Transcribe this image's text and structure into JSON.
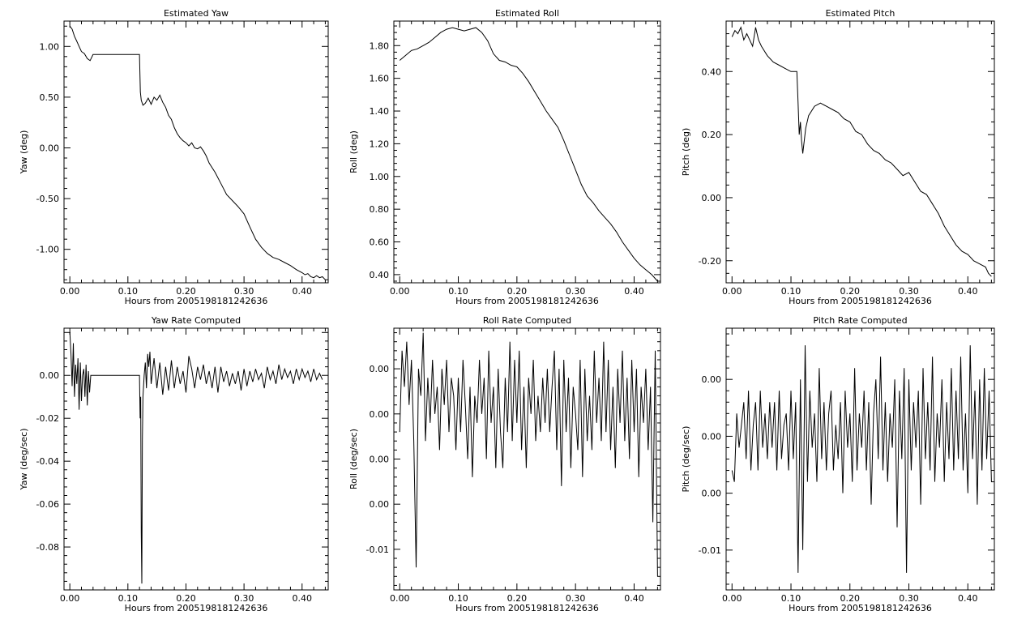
{
  "x_axis_label": "Hours from 2005198181242636",
  "chart_data": [
    {
      "type": "line",
      "title": "Estimated Yaw",
      "xlabel": "Hours from 2005198181242636",
      "ylabel": "Yaw (deg)",
      "xlim": [
        -0.01,
        0.445
      ],
      "ylim": [
        -1.33,
        1.25
      ],
      "xticks": [
        0.0,
        0.1,
        0.2,
        0.3,
        0.4
      ],
      "xticklabels": [
        "0.00",
        "0.10",
        "0.20",
        "0.30",
        "0.40"
      ],
      "yticks": [
        -1.0,
        -0.5,
        0.0,
        0.5,
        1.0
      ],
      "yticklabels": [
        "-1.00",
        "-0.50",
        "0.00",
        "0.50",
        "1.00"
      ],
      "x": [
        0.0,
        0.004,
        0.008,
        0.012,
        0.016,
        0.02,
        0.025,
        0.03,
        0.035,
        0.04,
        0.05,
        0.06,
        0.08,
        0.1,
        0.12,
        0.1215,
        0.123,
        0.126,
        0.13,
        0.135,
        0.14,
        0.145,
        0.15,
        0.155,
        0.16,
        0.165,
        0.17,
        0.175,
        0.18,
        0.185,
        0.19,
        0.195,
        0.2,
        0.205,
        0.21,
        0.215,
        0.22,
        0.225,
        0.23,
        0.235,
        0.24,
        0.25,
        0.26,
        0.27,
        0.28,
        0.29,
        0.3,
        0.31,
        0.32,
        0.33,
        0.34,
        0.35,
        0.36,
        0.37,
        0.38,
        0.39,
        0.4,
        0.405,
        0.41,
        0.415,
        0.42,
        0.425,
        0.43,
        0.435,
        0.44
      ],
      "y": [
        1.2,
        1.17,
        1.1,
        1.05,
        1.0,
        0.95,
        0.93,
        0.88,
        0.86,
        0.92,
        0.92,
        0.92,
        0.92,
        0.92,
        0.92,
        0.55,
        0.47,
        0.42,
        0.44,
        0.49,
        0.43,
        0.5,
        0.47,
        0.52,
        0.45,
        0.4,
        0.32,
        0.28,
        0.2,
        0.14,
        0.1,
        0.07,
        0.05,
        0.02,
        0.05,
        0.0,
        -0.01,
        0.01,
        -0.03,
        -0.08,
        -0.15,
        -0.24,
        -0.35,
        -0.46,
        -0.52,
        -0.58,
        -0.65,
        -0.78,
        -0.9,
        -0.98,
        -1.04,
        -1.08,
        -1.1,
        -1.13,
        -1.16,
        -1.2,
        -1.23,
        -1.25,
        -1.24,
        -1.27,
        -1.28,
        -1.26,
        -1.28,
        -1.27,
        -1.3
      ]
    },
    {
      "type": "line",
      "title": "Estimated Roll",
      "xlabel": "Hours from 2005198181242636",
      "ylabel": "Roll (deg)",
      "xlim": [
        -0.01,
        0.445
      ],
      "ylim": [
        0.35,
        1.95
      ],
      "xticks": [
        0.0,
        0.1,
        0.2,
        0.3,
        0.4
      ],
      "xticklabels": [
        "0.00",
        "0.10",
        "0.20",
        "0.30",
        "0.40"
      ],
      "yticks": [
        0.4,
        0.6,
        0.8,
        1.0,
        1.2,
        1.4,
        1.6,
        1.8
      ],
      "yticklabels": [
        "0.40",
        "0.60",
        "0.80",
        "1.00",
        "1.20",
        "1.40",
        "1.60",
        "1.80"
      ],
      "x": [
        0.0,
        0.01,
        0.02,
        0.03,
        0.04,
        0.05,
        0.06,
        0.07,
        0.08,
        0.09,
        0.1,
        0.11,
        0.12,
        0.13,
        0.14,
        0.15,
        0.16,
        0.17,
        0.18,
        0.19,
        0.2,
        0.21,
        0.22,
        0.23,
        0.24,
        0.25,
        0.26,
        0.27,
        0.28,
        0.29,
        0.3,
        0.31,
        0.32,
        0.33,
        0.34,
        0.35,
        0.36,
        0.37,
        0.38,
        0.39,
        0.4,
        0.41,
        0.42,
        0.43,
        0.44
      ],
      "y": [
        1.71,
        1.74,
        1.77,
        1.78,
        1.8,
        1.82,
        1.85,
        1.88,
        1.9,
        1.91,
        1.9,
        1.89,
        1.9,
        1.91,
        1.88,
        1.83,
        1.75,
        1.71,
        1.7,
        1.68,
        1.67,
        1.63,
        1.58,
        1.52,
        1.46,
        1.4,
        1.35,
        1.3,
        1.22,
        1.13,
        1.04,
        0.95,
        0.88,
        0.84,
        0.79,
        0.75,
        0.71,
        0.66,
        0.6,
        0.55,
        0.5,
        0.46,
        0.43,
        0.4,
        0.36
      ]
    },
    {
      "type": "line",
      "title": "Estimated Pitch",
      "xlabel": "Hours from 2005198181242636",
      "ylabel": "Pitch (deg)",
      "xlim": [
        -0.01,
        0.445
      ],
      "ylim": [
        -0.27,
        0.56
      ],
      "xticks": [
        0.0,
        0.1,
        0.2,
        0.3,
        0.4
      ],
      "xticklabels": [
        "0.00",
        "0.10",
        "0.20",
        "0.30",
        "0.40"
      ],
      "yticks": [
        -0.2,
        0.0,
        0.2,
        0.4
      ],
      "yticklabels": [
        "-0.20",
        "0.00",
        "0.20",
        "0.40"
      ],
      "x": [
        0.0,
        0.005,
        0.01,
        0.015,
        0.02,
        0.025,
        0.03,
        0.035,
        0.04,
        0.045,
        0.05,
        0.06,
        0.07,
        0.08,
        0.09,
        0.1,
        0.11,
        0.112,
        0.114,
        0.116,
        0.118,
        0.12,
        0.125,
        0.13,
        0.14,
        0.15,
        0.16,
        0.17,
        0.18,
        0.19,
        0.2,
        0.21,
        0.22,
        0.23,
        0.24,
        0.25,
        0.26,
        0.27,
        0.28,
        0.29,
        0.3,
        0.31,
        0.32,
        0.33,
        0.34,
        0.35,
        0.36,
        0.37,
        0.38,
        0.39,
        0.4,
        0.41,
        0.42,
        0.43,
        0.435,
        0.44
      ],
      "y": [
        0.51,
        0.53,
        0.52,
        0.54,
        0.5,
        0.52,
        0.5,
        0.48,
        0.54,
        0.5,
        0.48,
        0.45,
        0.43,
        0.42,
        0.41,
        0.4,
        0.4,
        0.3,
        0.2,
        0.24,
        0.18,
        0.14,
        0.22,
        0.26,
        0.29,
        0.3,
        0.29,
        0.28,
        0.27,
        0.25,
        0.24,
        0.21,
        0.2,
        0.17,
        0.15,
        0.14,
        0.12,
        0.11,
        0.09,
        0.07,
        0.08,
        0.05,
        0.02,
        0.01,
        -0.02,
        -0.05,
        -0.09,
        -0.12,
        -0.15,
        -0.17,
        -0.18,
        -0.2,
        -0.21,
        -0.22,
        -0.24,
        -0.25
      ]
    },
    {
      "type": "line",
      "title": "Yaw Rate Computed",
      "xlabel": "Hours from 2005198181242636",
      "ylabel": "Yaw (deg/sec)",
      "xlim": [
        -0.01,
        0.445
      ],
      "ylim": [
        -0.1,
        0.022
      ],
      "xticks": [
        0.0,
        0.1,
        0.2,
        0.3,
        0.4
      ],
      "xticklabels": [
        "0.00",
        "0.10",
        "0.20",
        "0.30",
        "0.40"
      ],
      "yticks": [
        -0.08,
        -0.06,
        -0.04,
        -0.02,
        0.0
      ],
      "yticklabels": [
        "-0.08",
        "-0.06",
        "-0.04",
        "-0.02",
        "0.00"
      ],
      "x": [
        0.0,
        0.002,
        0.004,
        0.006,
        0.008,
        0.01,
        0.012,
        0.014,
        0.016,
        0.018,
        0.02,
        0.022,
        0.024,
        0.026,
        0.028,
        0.03,
        0.032,
        0.034,
        0.036,
        0.04,
        0.08,
        0.12,
        0.121,
        0.122,
        0.123,
        0.124,
        0.125,
        0.126,
        0.128,
        0.13,
        0.132,
        0.134,
        0.136,
        0.138,
        0.14,
        0.145,
        0.15,
        0.155,
        0.16,
        0.165,
        0.17,
        0.175,
        0.18,
        0.185,
        0.19,
        0.195,
        0.2,
        0.205,
        0.21,
        0.215,
        0.22,
        0.225,
        0.23,
        0.235,
        0.24,
        0.245,
        0.25,
        0.255,
        0.26,
        0.265,
        0.27,
        0.275,
        0.28,
        0.285,
        0.29,
        0.295,
        0.3,
        0.305,
        0.31,
        0.315,
        0.32,
        0.325,
        0.33,
        0.335,
        0.34,
        0.345,
        0.35,
        0.355,
        0.36,
        0.365,
        0.37,
        0.375,
        0.38,
        0.385,
        0.39,
        0.395,
        0.4,
        0.405,
        0.41,
        0.415,
        0.42,
        0.425,
        0.43,
        0.435
      ],
      "y": [
        0.02,
        0.01,
        -0.005,
        0.015,
        -0.01,
        0.005,
        -0.004,
        0.008,
        -0.016,
        0.006,
        -0.012,
        0.0,
        0.003,
        -0.01,
        0.005,
        -0.014,
        0.002,
        -0.008,
        0.0,
        0.0,
        0.0,
        0.0,
        -0.02,
        -0.01,
        -0.073,
        -0.097,
        -0.03,
        -0.01,
        0.0,
        0.006,
        -0.006,
        0.01,
        0.004,
        0.011,
        -0.004,
        0.008,
        -0.006,
        0.006,
        -0.009,
        0.004,
        -0.007,
        0.007,
        -0.006,
        0.004,
        -0.004,
        0.002,
        -0.008,
        0.009,
        0.003,
        -0.006,
        0.004,
        -0.002,
        0.005,
        -0.004,
        0.002,
        -0.006,
        0.004,
        -0.008,
        0.004,
        -0.003,
        0.002,
        -0.005,
        0.001,
        -0.004,
        0.002,
        -0.007,
        0.003,
        -0.005,
        0.002,
        -0.003,
        0.003,
        -0.002,
        0.001,
        -0.006,
        0.004,
        -0.002,
        0.002,
        -0.004,
        0.005,
        -0.002,
        0.003,
        -0.001,
        0.002,
        -0.004,
        0.003,
        -0.002,
        0.003,
        -0.001,
        0.002,
        -0.003,
        0.003,
        -0.002,
        0.001,
        -0.002
      ]
    },
    {
      "type": "line",
      "title": "Roll Rate Computed",
      "xlabel": "Hours from 2005198181242636",
      "ylabel": "Roll (deg/sec)",
      "xlim": [
        -0.01,
        0.445
      ],
      "ylim": [
        -0.0195,
        0.0095
      ],
      "xticks": [
        0.0,
        0.1,
        0.2,
        0.3,
        0.4
      ],
      "xticklabels": [
        "0.00",
        "0.10",
        "0.20",
        "0.30",
        "0.40"
      ],
      "yticks": [
        -0.015,
        -0.01,
        -0.005,
        0.0,
        0.005
      ],
      "yticklabels": [
        "-0.01",
        "0.00",
        "0.00",
        "0.00",
        "0.00"
      ],
      "x": [
        0.0,
        0.004,
        0.008,
        0.012,
        0.016,
        0.02,
        0.024,
        0.028,
        0.032,
        0.036,
        0.04,
        0.044,
        0.048,
        0.052,
        0.056,
        0.06,
        0.064,
        0.068,
        0.072,
        0.076,
        0.08,
        0.084,
        0.088,
        0.092,
        0.096,
        0.1,
        0.104,
        0.108,
        0.112,
        0.116,
        0.12,
        0.124,
        0.128,
        0.132,
        0.136,
        0.14,
        0.144,
        0.148,
        0.152,
        0.156,
        0.16,
        0.164,
        0.168,
        0.172,
        0.176,
        0.18,
        0.184,
        0.188,
        0.192,
        0.196,
        0.2,
        0.204,
        0.208,
        0.212,
        0.216,
        0.22,
        0.224,
        0.228,
        0.232,
        0.236,
        0.24,
        0.244,
        0.248,
        0.252,
        0.256,
        0.26,
        0.264,
        0.268,
        0.272,
        0.276,
        0.28,
        0.284,
        0.288,
        0.292,
        0.296,
        0.3,
        0.304,
        0.308,
        0.312,
        0.316,
        0.32,
        0.324,
        0.328,
        0.332,
        0.336,
        0.34,
        0.344,
        0.348,
        0.352,
        0.356,
        0.36,
        0.364,
        0.368,
        0.372,
        0.376,
        0.38,
        0.384,
        0.388,
        0.392,
        0.396,
        0.4,
        0.404,
        0.408,
        0.412,
        0.416,
        0.42,
        0.424,
        0.428,
        0.432,
        0.436,
        0.44
      ],
      "y": [
        -0.002,
        0.007,
        0.003,
        0.008,
        0.001,
        0.006,
        -0.003,
        -0.017,
        0.005,
        0.002,
        0.009,
        -0.003,
        0.004,
        -0.001,
        0.006,
        0.0,
        0.003,
        -0.004,
        0.005,
        0.001,
        0.006,
        -0.002,
        0.004,
        0.002,
        -0.004,
        0.004,
        -0.002,
        0.006,
        0.001,
        -0.005,
        0.003,
        -0.007,
        0.002,
        -0.001,
        0.006,
        0.0,
        0.004,
        -0.005,
        0.007,
        -0.001,
        0.003,
        -0.006,
        0.005,
        -0.002,
        -0.006,
        0.004,
        -0.002,
        0.008,
        -0.003,
        0.006,
        -0.001,
        0.007,
        -0.004,
        0.003,
        -0.006,
        0.004,
        0.0,
        0.006,
        -0.003,
        0.002,
        -0.002,
        0.004,
        -0.001,
        0.005,
        -0.002,
        0.003,
        0.007,
        -0.004,
        0.005,
        -0.008,
        0.006,
        -0.002,
        0.004,
        -0.006,
        0.003,
        0.0,
        -0.004,
        0.006,
        -0.007,
        0.005,
        -0.003,
        0.002,
        -0.004,
        0.007,
        -0.001,
        0.004,
        -0.003,
        0.008,
        -0.002,
        0.006,
        -0.004,
        0.003,
        -0.006,
        0.005,
        -0.001,
        0.007,
        -0.003,
        0.004,
        -0.005,
        0.006,
        -0.002,
        0.005,
        -0.007,
        0.003,
        -0.001,
        0.005,
        -0.004,
        0.003,
        -0.012,
        0.007,
        -0.018
      ]
    },
    {
      "type": "line",
      "title": "Pitch Rate Computed",
      "xlabel": "Hours from 2005198181242636",
      "ylabel": "Pitch (deg/sec)",
      "xlim": [
        -0.01,
        0.445
      ],
      "ylim": [
        -0.0135,
        0.0095
      ],
      "xticks": [
        0.0,
        0.1,
        0.2,
        0.3,
        0.4
      ],
      "xticklabels": [
        "0.00",
        "0.10",
        "0.20",
        "0.30",
        "0.40"
      ],
      "yticks": [
        -0.01,
        -0.005,
        0.0,
        0.005
      ],
      "yticklabels": [
        "-0.01",
        "0.00",
        "0.00",
        "0.00"
      ],
      "x": [
        0.0,
        0.004,
        0.008,
        0.012,
        0.016,
        0.02,
        0.024,
        0.028,
        0.032,
        0.036,
        0.04,
        0.044,
        0.048,
        0.052,
        0.056,
        0.06,
        0.064,
        0.068,
        0.072,
        0.076,
        0.08,
        0.084,
        0.088,
        0.092,
        0.096,
        0.1,
        0.104,
        0.108,
        0.112,
        0.116,
        0.12,
        0.124,
        0.128,
        0.132,
        0.136,
        0.14,
        0.144,
        0.148,
        0.152,
        0.156,
        0.16,
        0.164,
        0.168,
        0.172,
        0.176,
        0.18,
        0.184,
        0.188,
        0.192,
        0.196,
        0.2,
        0.204,
        0.208,
        0.212,
        0.216,
        0.22,
        0.224,
        0.228,
        0.232,
        0.236,
        0.24,
        0.244,
        0.248,
        0.252,
        0.256,
        0.26,
        0.264,
        0.268,
        0.272,
        0.276,
        0.28,
        0.284,
        0.288,
        0.292,
        0.296,
        0.3,
        0.304,
        0.308,
        0.312,
        0.316,
        0.32,
        0.324,
        0.328,
        0.332,
        0.336,
        0.34,
        0.344,
        0.348,
        0.352,
        0.356,
        0.36,
        0.364,
        0.368,
        0.372,
        0.376,
        0.38,
        0.384,
        0.388,
        0.392,
        0.396,
        0.4,
        0.404,
        0.408,
        0.412,
        0.416,
        0.42,
        0.424,
        0.428,
        0.432,
        0.436,
        0.44
      ],
      "y": [
        -0.003,
        -0.004,
        0.002,
        -0.001,
        0.001,
        0.003,
        -0.002,
        0.004,
        -0.003,
        0.001,
        0.003,
        -0.003,
        0.004,
        -0.001,
        0.002,
        -0.002,
        0.003,
        -0.001,
        0.003,
        -0.003,
        0.004,
        -0.002,
        0.001,
        0.002,
        -0.003,
        0.004,
        -0.002,
        0.003,
        -0.012,
        0.005,
        -0.01,
        0.008,
        -0.004,
        0.004,
        -0.001,
        0.002,
        -0.004,
        0.006,
        -0.002,
        0.003,
        -0.003,
        0.002,
        0.004,
        -0.003,
        0.001,
        -0.002,
        0.003,
        -0.005,
        0.004,
        -0.001,
        0.002,
        -0.004,
        0.006,
        -0.003,
        0.002,
        -0.001,
        0.004,
        -0.003,
        0.003,
        -0.006,
        0.002,
        0.005,
        -0.002,
        0.007,
        -0.003,
        0.003,
        -0.004,
        0.002,
        -0.001,
        0.005,
        -0.008,
        0.004,
        -0.002,
        0.006,
        -0.012,
        0.005,
        -0.003,
        0.003,
        -0.001,
        0.004,
        -0.006,
        0.006,
        -0.002,
        0.003,
        -0.003,
        0.007,
        -0.004,
        0.002,
        -0.001,
        0.005,
        -0.004,
        0.003,
        -0.002,
        0.006,
        -0.003,
        0.004,
        -0.002,
        0.007,
        -0.003,
        0.002,
        -0.005,
        0.008,
        -0.002,
        0.004,
        -0.006,
        0.005,
        -0.003,
        0.006,
        -0.002,
        0.004,
        -0.004
      ]
    }
  ]
}
